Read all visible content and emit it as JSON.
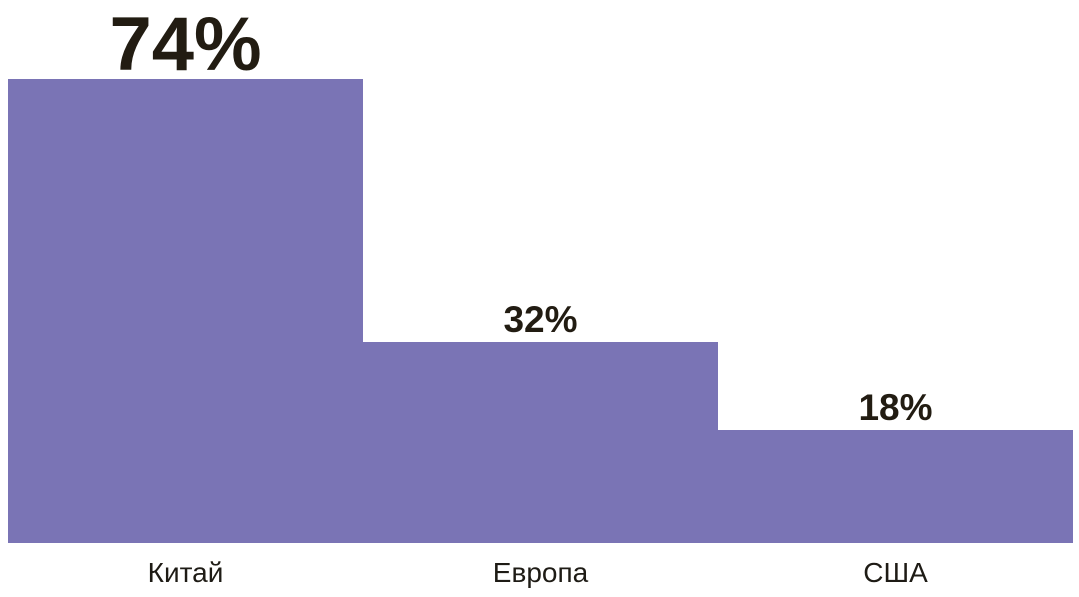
{
  "chart_data": {
    "type": "bar",
    "title": "",
    "xlabel": "",
    "ylabel": "",
    "categories": [
      "Китай",
      "Европа",
      "США"
    ],
    "values": [
      74,
      32,
      18
    ],
    "value_labels": [
      "74%",
      "32%",
      "18%"
    ],
    "unit": "%",
    "ylim": [
      0,
      74
    ],
    "grid": false,
    "legend": false,
    "orientation": "vertical",
    "bar_gap": 0,
    "emphasis": "first value label rendered extra large",
    "colors": {
      "bar": "#7a74b5",
      "value_label_text": "#221c12",
      "category_label_text": "#1e1b15",
      "background": "#ffffff"
    }
  }
}
